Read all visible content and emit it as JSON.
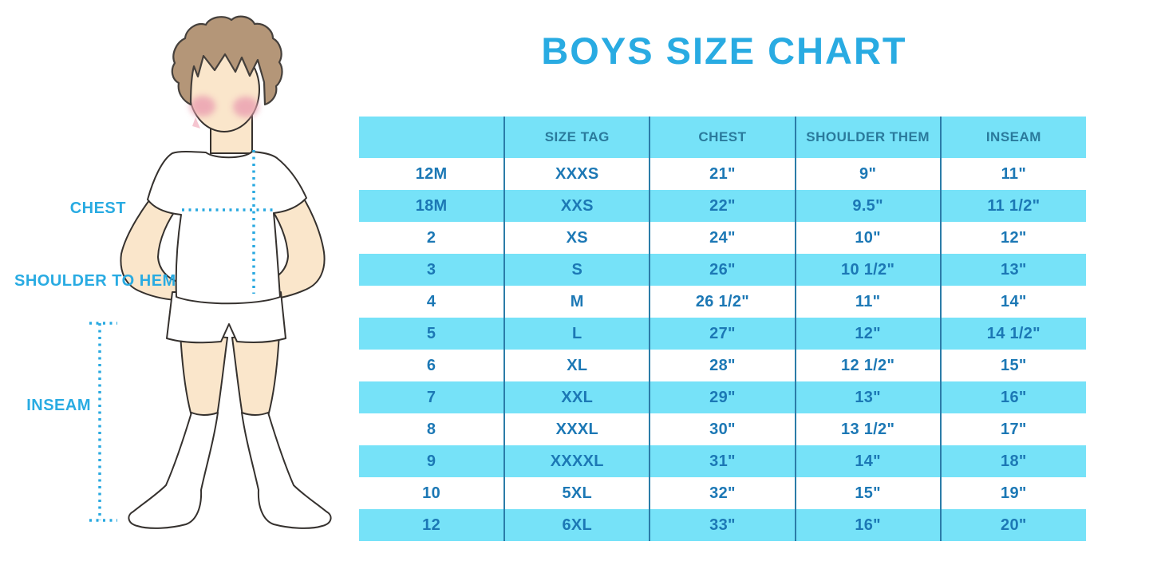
{
  "title": "BOYS SIZE CHART",
  "diagram": {
    "chest_label": "CHEST",
    "shoulder_to_hem_label": "SHOULDER TO HEM",
    "inseam_label": "INSEAM"
  },
  "table": {
    "columns": [
      "",
      "SIZE TAG",
      "CHEST",
      "SHOULDER THEM",
      "INSEAM"
    ],
    "rows": [
      [
        "12M",
        "XXXS",
        "21\"",
        "9\"",
        "11\""
      ],
      [
        "18M",
        "XXS",
        "22\"",
        "9.5\"",
        "11 1/2\""
      ],
      [
        "2",
        "XS",
        "24\"",
        "10\"",
        "12\""
      ],
      [
        "3",
        "S",
        "26\"",
        "10 1/2\"",
        "13\""
      ],
      [
        "4",
        "M",
        "26 1/2\"",
        "11\"",
        "14\""
      ],
      [
        "5",
        "L",
        "27\"",
        "12\"",
        "14 1/2\""
      ],
      [
        "6",
        "XL",
        "28\"",
        "12 1/2\"",
        "15\""
      ],
      [
        "7",
        "XXL",
        "29\"",
        "13\"",
        "16\""
      ],
      [
        "8",
        "XXXL",
        "30\"",
        "13 1/2\"",
        "17\""
      ],
      [
        "9",
        "XXXXL",
        "31\"",
        "14\"",
        "18\""
      ],
      [
        "10",
        "5XL",
        "32\"",
        "15\"",
        "19\""
      ],
      [
        "12",
        "6XL",
        "33\"",
        "16\"",
        "20\""
      ]
    ]
  },
  "colors": {
    "accent_blue": "#29abe2",
    "row_cyan": "#76e2f8",
    "cell_text": "#1c78b5",
    "header_text": "#2a7a9c",
    "divider": "#2b7ca8",
    "hair_brown": "#b49678",
    "skin": "#fae6cb",
    "blush_pink": "#eba3b2"
  }
}
